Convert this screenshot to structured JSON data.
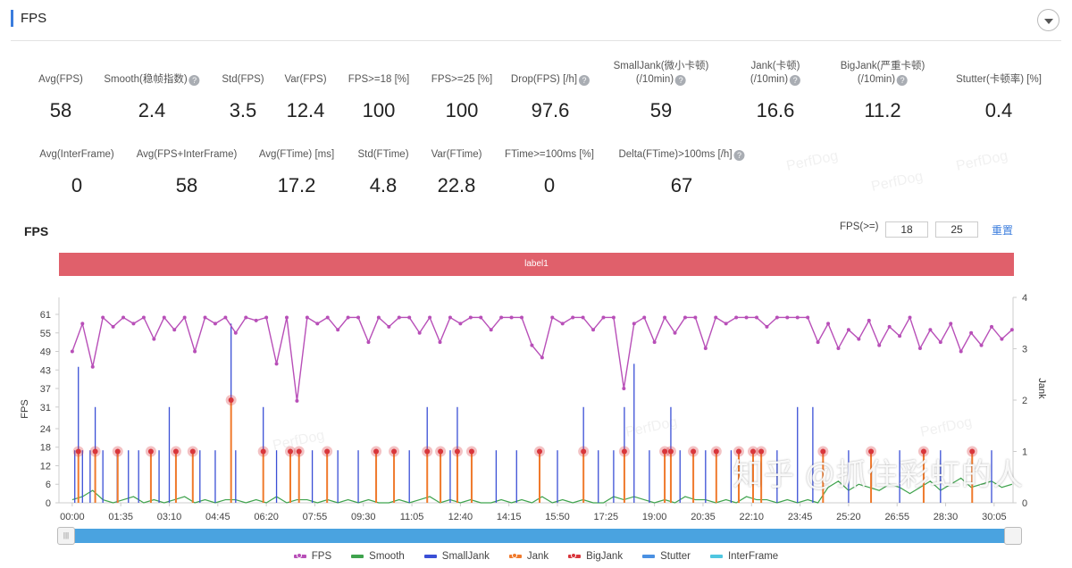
{
  "header": {
    "title": "FPS"
  },
  "stats_row1": [
    {
      "label": "Avg(FPS)",
      "value": "58",
      "help": false
    },
    {
      "label": "Smooth(稳帧指数)",
      "value": "2.4",
      "help": true
    },
    {
      "label": "Std(FPS)",
      "value": "3.5",
      "help": false
    },
    {
      "label": "Var(FPS)",
      "value": "12.4",
      "help": false
    },
    {
      "label": "FPS>=18 [%]",
      "value": "100",
      "help": false
    },
    {
      "label": "FPS>=25 [%]",
      "value": "100",
      "help": false
    },
    {
      "label": "Drop(FPS) [/h]",
      "value": "97.6",
      "help": true
    },
    {
      "label": "SmallJank(微小卡顿)",
      "label2": "(/10min)",
      "value": "59",
      "help": true
    },
    {
      "label": "Jank(卡顿)",
      "label2": "(/10min)",
      "value": "16.6",
      "help": true
    },
    {
      "label": "BigJank(严重卡顿)",
      "label2": "(/10min)",
      "value": "11.2",
      "help": true
    },
    {
      "label": "Stutter(卡顿率) [%]",
      "value": "0.4",
      "help": false
    }
  ],
  "stats_row2": [
    {
      "label": "Avg(InterFrame)",
      "value": "0"
    },
    {
      "label": "Avg(FPS+InterFrame)",
      "value": "58"
    },
    {
      "label": "Avg(FTime) [ms]",
      "value": "17.2"
    },
    {
      "label": "Std(FTime)",
      "value": "4.8"
    },
    {
      "label": "Var(FTime)",
      "value": "22.8"
    },
    {
      "label": "FTime>=100ms [%]",
      "value": "0"
    },
    {
      "label": "Delta(FTime)>100ms [/h]",
      "value": "67",
      "help": true
    }
  ],
  "help_glyph": "?",
  "chart_header": {
    "title": "FPS",
    "threshold_label": "FPS(>=)",
    "threshold_low": "18",
    "threshold_high": "25",
    "reset_label": "重置",
    "band_label": "label1"
  },
  "watermark": "PerfDog",
  "overlay_watermark": "知乎 @抓住彩虹的人",
  "slider": {
    "handle_glyph": "|||",
    "range": [
      0,
      1
    ]
  },
  "chart_data": {
    "type": "line",
    "xlabel": "",
    "ylabel_left": "FPS",
    "ylabel_right": "Jank",
    "x_ticks": [
      "00:00",
      "01:35",
      "03:10",
      "04:45",
      "06:20",
      "07:55",
      "09:30",
      "11:05",
      "12:40",
      "14:15",
      "15:50",
      "17:25",
      "19:00",
      "20:35",
      "22:10",
      "23:45",
      "25:20",
      "26:55",
      "28:30",
      "30:05"
    ],
    "y_left_ticks": [
      0,
      6,
      12,
      18,
      24,
      31,
      37,
      43,
      49,
      55,
      61
    ],
    "y_right_ticks": [
      0,
      1,
      2,
      3,
      4
    ],
    "y_right_range": [
      0,
      4
    ],
    "sample_interval_s": 20,
    "colors": {
      "FPS": "#b84fb8",
      "Smooth": "#3fa34d",
      "SmallJank": "#3a4fd6",
      "Jank": "#f07a2c",
      "BigJank": "#d8363c",
      "Stutter": "#4a90e2",
      "InterFrame": "#4fc6e0"
    },
    "legend": [
      "FPS",
      "Smooth",
      "SmallJank",
      "Jank",
      "BigJank",
      "Stutter",
      "InterFrame"
    ],
    "legend_position": "bottom",
    "series": [
      {
        "name": "FPS",
        "axis": "left",
        "values": [
          49,
          58,
          44,
          60,
          57,
          60,
          58,
          60,
          53,
          60,
          56,
          60,
          49,
          60,
          58,
          60,
          55,
          60,
          59,
          60,
          45,
          60,
          33,
          60,
          58,
          60,
          56,
          60,
          60,
          52,
          60,
          57,
          60,
          60,
          55,
          60,
          52,
          60,
          58,
          60,
          60,
          56,
          60,
          60,
          60,
          51,
          47,
          60,
          58,
          60,
          60,
          56,
          60,
          60,
          37,
          58,
          60,
          52,
          60,
          55,
          60,
          60,
          50,
          60,
          58,
          60,
          60,
          60,
          57,
          60,
          60,
          60,
          60,
          52,
          58,
          50,
          56,
          53,
          59,
          51,
          57,
          54,
          60,
          50,
          56,
          52,
          58,
          49,
          55,
          51,
          57,
          53,
          56
        ]
      },
      {
        "name": "Smooth",
        "axis": "left",
        "values": [
          1,
          2,
          4,
          1,
          0,
          1,
          2,
          0,
          1,
          0,
          1,
          2,
          0,
          1,
          0,
          1,
          1,
          0,
          1,
          0,
          2,
          0,
          1,
          1,
          0,
          1,
          0,
          1,
          0,
          1,
          0,
          0,
          1,
          0,
          1,
          2,
          0,
          1,
          0,
          1,
          0,
          0,
          1,
          0,
          1,
          0,
          2,
          0,
          1,
          0,
          1,
          0,
          0,
          2,
          1,
          2,
          1,
          0,
          1,
          0,
          2,
          1,
          1,
          0,
          1,
          0,
          2,
          1,
          1,
          0,
          1,
          0,
          1,
          0,
          5,
          7,
          4,
          6,
          5,
          4,
          6,
          5,
          3,
          5,
          7,
          4,
          6,
          8,
          5,
          6,
          7,
          5,
          6
        ]
      }
    ],
    "small_jank_events": [
      [
        5,
        17
      ],
      [
        12,
        44
      ],
      [
        20,
        17
      ],
      [
        35,
        17
      ],
      [
        45,
        31
      ],
      [
        60,
        17
      ],
      [
        88,
        17
      ],
      [
        110,
        17
      ],
      [
        130,
        17
      ],
      [
        154,
        17
      ],
      [
        170,
        17
      ],
      [
        190,
        31
      ],
      [
        203,
        17
      ],
      [
        236,
        17
      ],
      [
        250,
        17
      ],
      [
        280,
        17
      ],
      [
        311,
        58
      ],
      [
        320,
        17
      ],
      [
        374,
        31
      ],
      [
        400,
        17
      ],
      [
        427,
        17
      ],
      [
        444,
        17
      ],
      [
        470,
        17
      ],
      [
        499,
        17
      ],
      [
        520,
        17
      ],
      [
        560,
        17
      ],
      [
        595,
        17
      ],
      [
        630,
        17
      ],
      [
        660,
        17
      ],
      [
        695,
        31
      ],
      [
        721,
        17
      ],
      [
        740,
        17
      ],
      [
        754,
        31
      ],
      [
        782,
        17
      ],
      [
        830,
        17
      ],
      [
        870,
        17
      ],
      [
        915,
        17
      ],
      [
        950,
        17
      ],
      [
        1001,
        31
      ],
      [
        1030,
        17
      ],
      [
        1060,
        17
      ],
      [
        1081,
        31
      ],
      [
        1100,
        45
      ],
      [
        1130,
        17
      ],
      [
        1160,
        17
      ],
      [
        1172,
        31
      ],
      [
        1190,
        17
      ],
      [
        1216,
        17
      ],
      [
        1240,
        17
      ],
      [
        1261,
        17
      ],
      [
        1290,
        17
      ],
      [
        1305,
        17
      ],
      [
        1333,
        17
      ],
      [
        1349,
        17
      ],
      [
        1380,
        17
      ],
      [
        1420,
        31
      ],
      [
        1450,
        31
      ],
      [
        1470,
        17
      ],
      [
        1520,
        17
      ],
      [
        1564,
        17
      ],
      [
        1620,
        17
      ],
      [
        1667,
        17
      ],
      [
        1700,
        17
      ],
      [
        1762,
        17
      ],
      [
        1800,
        17
      ]
    ],
    "jank_events": [
      [
        12,
        1
      ],
      [
        45,
        1
      ],
      [
        89,
        1
      ],
      [
        154,
        1
      ],
      [
        203,
        1
      ],
      [
        236,
        1
      ],
      [
        311,
        2
      ],
      [
        374,
        1
      ],
      [
        427,
        1
      ],
      [
        444,
        1
      ],
      [
        499,
        1
      ],
      [
        595,
        1
      ],
      [
        630,
        1
      ],
      [
        695,
        1
      ],
      [
        721,
        1
      ],
      [
        754,
        1
      ],
      [
        782,
        1
      ],
      [
        915,
        1
      ],
      [
        1001,
        1
      ],
      [
        1081,
        1
      ],
      [
        1160,
        1
      ],
      [
        1172,
        1
      ],
      [
        1216,
        1
      ],
      [
        1261,
        1
      ],
      [
        1305,
        1
      ],
      [
        1333,
        1
      ],
      [
        1349,
        1
      ],
      [
        1470,
        1
      ],
      [
        1564,
        1
      ],
      [
        1667,
        1
      ],
      [
        1762,
        1
      ]
    ]
  }
}
